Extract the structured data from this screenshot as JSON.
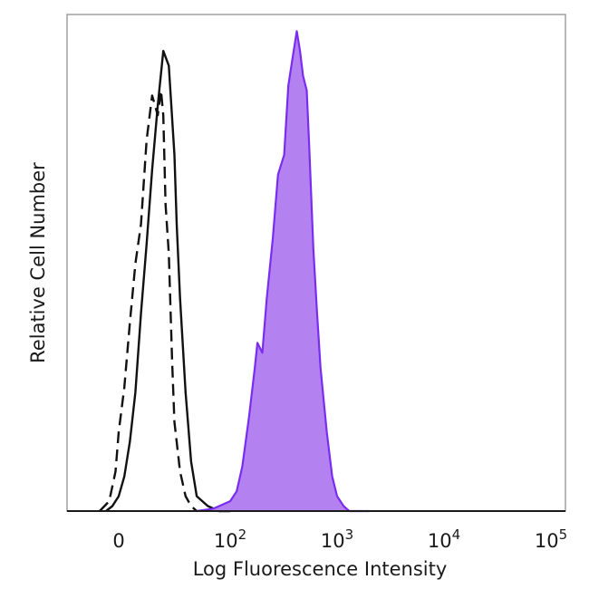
{
  "chart_data": {
    "type": "area",
    "title": "",
    "xlabel": "Log Fluorescence Intensity",
    "ylabel": "Relative Cell Number",
    "xscale": "biexponential (log above 100)",
    "xlim": [
      -60,
      200000
    ],
    "ylim": [
      0,
      1.0
    ],
    "grid": false,
    "legend": "none",
    "x_ticks": [
      {
        "value": 0,
        "base": "0",
        "exp": ""
      },
      {
        "value": 100,
        "base": "10",
        "exp": "2"
      },
      {
        "value": 1000,
        "base": "10",
        "exp": "3"
      },
      {
        "value": 10000,
        "base": "10",
        "exp": "4"
      },
      {
        "value": 100000,
        "base": "10",
        "exp": "5"
      }
    ],
    "series": [
      {
        "style": "dashed-outline",
        "color": "#111111",
        "x": [
          -30,
          -15,
          -5,
          0,
          5,
          10,
          15,
          20,
          25,
          30,
          35,
          38,
          40,
          42,
          45,
          48,
          50,
          55,
          60,
          65,
          70
        ],
        "y": [
          0.0,
          0.02,
          0.08,
          0.16,
          0.25,
          0.38,
          0.5,
          0.58,
          0.75,
          0.84,
          0.8,
          0.85,
          0.8,
          0.62,
          0.52,
          0.3,
          0.18,
          0.08,
          0.03,
          0.01,
          0.0
        ]
      },
      {
        "style": "solid-outline",
        "color": "#111111",
        "x": [
          -20,
          -10,
          0,
          5,
          10,
          15,
          20,
          25,
          30,
          35,
          40,
          45,
          50,
          52,
          55,
          60,
          65,
          70,
          80,
          90,
          100
        ],
        "y": [
          0.0,
          0.01,
          0.03,
          0.07,
          0.14,
          0.24,
          0.4,
          0.54,
          0.69,
          0.82,
          0.93,
          0.9,
          0.72,
          0.58,
          0.43,
          0.24,
          0.1,
          0.03,
          0.01,
          0.0,
          0.0
        ]
      },
      {
        "style": "filled",
        "color": "#7a2cf0",
        "fill": "#b482f0",
        "x": [
          70,
          85,
          100,
          115,
          130,
          150,
          170,
          180,
          200,
          220,
          250,
          280,
          320,
          350,
          380,
          420,
          450,
          480,
          520,
          550,
          600,
          650,
          700,
          800,
          900,
          1000,
          1150,
          1300,
          1500,
          1700,
          2000
        ],
        "y": [
          0.0,
          0.005,
          0.02,
          0.04,
          0.09,
          0.19,
          0.29,
          0.34,
          0.32,
          0.43,
          0.55,
          0.68,
          0.72,
          0.86,
          0.91,
          0.97,
          0.93,
          0.88,
          0.85,
          0.73,
          0.53,
          0.4,
          0.29,
          0.16,
          0.07,
          0.03,
          0.01,
          0.0,
          0.0,
          0.0,
          0.0
        ]
      }
    ]
  }
}
